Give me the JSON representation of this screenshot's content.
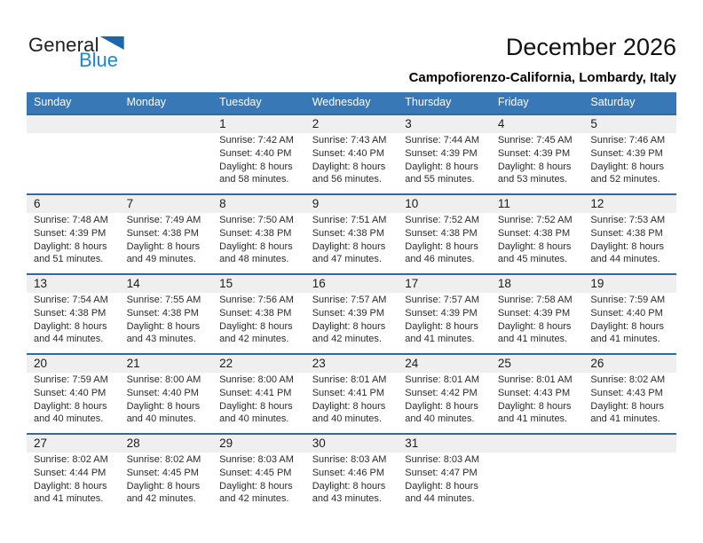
{
  "logo": {
    "general": "General",
    "blue": "Blue"
  },
  "header": {
    "title": "December 2026",
    "subtitle": "Campofiorenzo-California, Lombardy, Italy"
  },
  "colors": {
    "header_bar": "#3878b6",
    "row_divider": "#2d6ca3",
    "number_strip": "#efefef",
    "logo_blue": "#1d87d0",
    "logo_triangle": "#1a67ab"
  },
  "calendar": {
    "weekday_headers": [
      "Sunday",
      "Monday",
      "Tuesday",
      "Wednesday",
      "Thursday",
      "Friday",
      "Saturday"
    ],
    "weeks": [
      {
        "cells": [
          null,
          null,
          {
            "number": "1",
            "lines": [
              "Sunrise: 7:42 AM",
              "Sunset: 4:40 PM",
              "Daylight: 8 hours",
              "and 58 minutes."
            ]
          },
          {
            "number": "2",
            "lines": [
              "Sunrise: 7:43 AM",
              "Sunset: 4:40 PM",
              "Daylight: 8 hours",
              "and 56 minutes."
            ]
          },
          {
            "number": "3",
            "lines": [
              "Sunrise: 7:44 AM",
              "Sunset: 4:39 PM",
              "Daylight: 8 hours",
              "and 55 minutes."
            ]
          },
          {
            "number": "4",
            "lines": [
              "Sunrise: 7:45 AM",
              "Sunset: 4:39 PM",
              "Daylight: 8 hours",
              "and 53 minutes."
            ]
          },
          {
            "number": "5",
            "lines": [
              "Sunrise: 7:46 AM",
              "Sunset: 4:39 PM",
              "Daylight: 8 hours",
              "and 52 minutes."
            ]
          }
        ]
      },
      {
        "cells": [
          {
            "number": "6",
            "lines": [
              "Sunrise: 7:48 AM",
              "Sunset: 4:39 PM",
              "Daylight: 8 hours",
              "and 51 minutes."
            ]
          },
          {
            "number": "7",
            "lines": [
              "Sunrise: 7:49 AM",
              "Sunset: 4:38 PM",
              "Daylight: 8 hours",
              "and 49 minutes."
            ]
          },
          {
            "number": "8",
            "lines": [
              "Sunrise: 7:50 AM",
              "Sunset: 4:38 PM",
              "Daylight: 8 hours",
              "and 48 minutes."
            ]
          },
          {
            "number": "9",
            "lines": [
              "Sunrise: 7:51 AM",
              "Sunset: 4:38 PM",
              "Daylight: 8 hours",
              "and 47 minutes."
            ]
          },
          {
            "number": "10",
            "lines": [
              "Sunrise: 7:52 AM",
              "Sunset: 4:38 PM",
              "Daylight: 8 hours",
              "and 46 minutes."
            ]
          },
          {
            "number": "11",
            "lines": [
              "Sunrise: 7:52 AM",
              "Sunset: 4:38 PM",
              "Daylight: 8 hours",
              "and 45 minutes."
            ]
          },
          {
            "number": "12",
            "lines": [
              "Sunrise: 7:53 AM",
              "Sunset: 4:38 PM",
              "Daylight: 8 hours",
              "and 44 minutes."
            ]
          }
        ]
      },
      {
        "cells": [
          {
            "number": "13",
            "lines": [
              "Sunrise: 7:54 AM",
              "Sunset: 4:38 PM",
              "Daylight: 8 hours",
              "and 44 minutes."
            ]
          },
          {
            "number": "14",
            "lines": [
              "Sunrise: 7:55 AM",
              "Sunset: 4:38 PM",
              "Daylight: 8 hours",
              "and 43 minutes."
            ]
          },
          {
            "number": "15",
            "lines": [
              "Sunrise: 7:56 AM",
              "Sunset: 4:38 PM",
              "Daylight: 8 hours",
              "and 42 minutes."
            ]
          },
          {
            "number": "16",
            "lines": [
              "Sunrise: 7:57 AM",
              "Sunset: 4:39 PM",
              "Daylight: 8 hours",
              "and 42 minutes."
            ]
          },
          {
            "number": "17",
            "lines": [
              "Sunrise: 7:57 AM",
              "Sunset: 4:39 PM",
              "Daylight: 8 hours",
              "and 41 minutes."
            ]
          },
          {
            "number": "18",
            "lines": [
              "Sunrise: 7:58 AM",
              "Sunset: 4:39 PM",
              "Daylight: 8 hours",
              "and 41 minutes."
            ]
          },
          {
            "number": "19",
            "lines": [
              "Sunrise: 7:59 AM",
              "Sunset: 4:40 PM",
              "Daylight: 8 hours",
              "and 41 minutes."
            ]
          }
        ]
      },
      {
        "cells": [
          {
            "number": "20",
            "lines": [
              "Sunrise: 7:59 AM",
              "Sunset: 4:40 PM",
              "Daylight: 8 hours",
              "and 40 minutes."
            ]
          },
          {
            "number": "21",
            "lines": [
              "Sunrise: 8:00 AM",
              "Sunset: 4:40 PM",
              "Daylight: 8 hours",
              "and 40 minutes."
            ]
          },
          {
            "number": "22",
            "lines": [
              "Sunrise: 8:00 AM",
              "Sunset: 4:41 PM",
              "Daylight: 8 hours",
              "and 40 minutes."
            ]
          },
          {
            "number": "23",
            "lines": [
              "Sunrise: 8:01 AM",
              "Sunset: 4:41 PM",
              "Daylight: 8 hours",
              "and 40 minutes."
            ]
          },
          {
            "number": "24",
            "lines": [
              "Sunrise: 8:01 AM",
              "Sunset: 4:42 PM",
              "Daylight: 8 hours",
              "and 40 minutes."
            ]
          },
          {
            "number": "25",
            "lines": [
              "Sunrise: 8:01 AM",
              "Sunset: 4:43 PM",
              "Daylight: 8 hours",
              "and 41 minutes."
            ]
          },
          {
            "number": "26",
            "lines": [
              "Sunrise: 8:02 AM",
              "Sunset: 4:43 PM",
              "Daylight: 8 hours",
              "and 41 minutes."
            ]
          }
        ]
      },
      {
        "cells": [
          {
            "number": "27",
            "lines": [
              "Sunrise: 8:02 AM",
              "Sunset: 4:44 PM",
              "Daylight: 8 hours",
              "and 41 minutes."
            ]
          },
          {
            "number": "28",
            "lines": [
              "Sunrise: 8:02 AM",
              "Sunset: 4:45 PM",
              "Daylight: 8 hours",
              "and 42 minutes."
            ]
          },
          {
            "number": "29",
            "lines": [
              "Sunrise: 8:03 AM",
              "Sunset: 4:45 PM",
              "Daylight: 8 hours",
              "and 42 minutes."
            ]
          },
          {
            "number": "30",
            "lines": [
              "Sunrise: 8:03 AM",
              "Sunset: 4:46 PM",
              "Daylight: 8 hours",
              "and 43 minutes."
            ]
          },
          {
            "number": "31",
            "lines": [
              "Sunrise: 8:03 AM",
              "Sunset: 4:47 PM",
              "Daylight: 8 hours",
              "and 44 minutes."
            ]
          },
          null,
          null
        ]
      }
    ]
  }
}
